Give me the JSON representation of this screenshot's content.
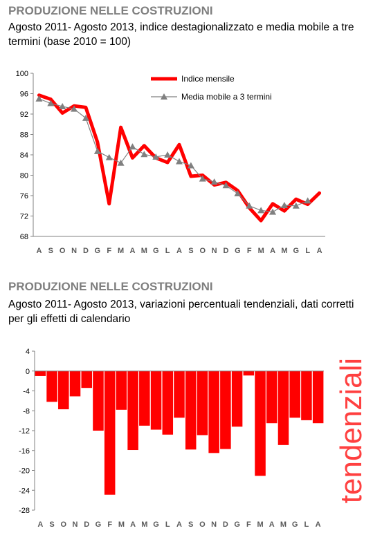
{
  "chart_data": [
    {
      "type": "line",
      "title": "PRODUZIONE NELLE COSTRUZIONI",
      "subtitle": "Agosto 2011- Agosto 2013, indice destagionalizzato e media mobile a tre termini (base 2010 = 100)",
      "categories": [
        "A",
        "S",
        "O",
        "N",
        "D",
        "G",
        "F",
        "M",
        "A",
        "M",
        "G",
        "L",
        "A",
        "S",
        "O",
        "N",
        "D",
        "G",
        "F",
        "M",
        "A",
        "M",
        "G",
        "L",
        "A"
      ],
      "ylim": [
        68,
        100
      ],
      "yticks": [
        68,
        72,
        76,
        80,
        84,
        88,
        92,
        96,
        100
      ],
      "legend_position": "top-right",
      "series": [
        {
          "name": "Indice mensile",
          "color": "#ff0000",
          "values": [
            95.7,
            94.9,
            92.2,
            93.6,
            93.3,
            86.5,
            74.4,
            89.4,
            83.4,
            85.8,
            83.4,
            82.5,
            86.0,
            79.8,
            80.0,
            78.1,
            78.6,
            77.0,
            73.6,
            71.1,
            74.4,
            73.0,
            75.3,
            74.3,
            76.5
          ]
        },
        {
          "name": "Media mobile a 3 termini",
          "color": "#808080",
          "values": [
            95.0,
            94.1,
            93.5,
            93.0,
            91.2,
            84.7,
            83.5,
            82.4,
            85.6,
            84.1,
            83.6,
            84.0,
            82.7,
            81.9,
            79.3,
            78.7,
            78.0,
            76.4,
            74.0,
            73.1,
            72.8,
            74.1,
            74.0,
            75.0,
            null
          ]
        }
      ]
    },
    {
      "type": "bar",
      "title": "PRODUZIONE NELLE COSTRUZIONI",
      "subtitle": "Agosto 2011- Agosto 2013, variazioni percentuali tendenziali, dati corretti per gli effetti di calendario",
      "side_label": "tendenziali",
      "categories": [
        "A",
        "S",
        "O",
        "N",
        "D",
        "G",
        "F",
        "M",
        "A",
        "M",
        "G",
        "L",
        "A",
        "S",
        "O",
        "N",
        "D",
        "G",
        "F",
        "M",
        "A",
        "M",
        "G",
        "L",
        "A"
      ],
      "ylim": [
        -28,
        4
      ],
      "yticks": [
        4,
        0,
        -4,
        -8,
        -12,
        -16,
        -20,
        -24,
        -28
      ],
      "color": "#ff0000",
      "values": [
        -1.0,
        -6.2,
        -7.7,
        -5.1,
        -3.4,
        -12.0,
        -24.9,
        -7.8,
        -15.9,
        -11.0,
        -11.8,
        -12.8,
        -9.4,
        -15.8,
        -12.9,
        -16.5,
        -15.7,
        -11.2,
        -0.9,
        -21.1,
        -10.5,
        -14.9,
        -9.4,
        -9.9,
        -10.5
      ]
    }
  ]
}
